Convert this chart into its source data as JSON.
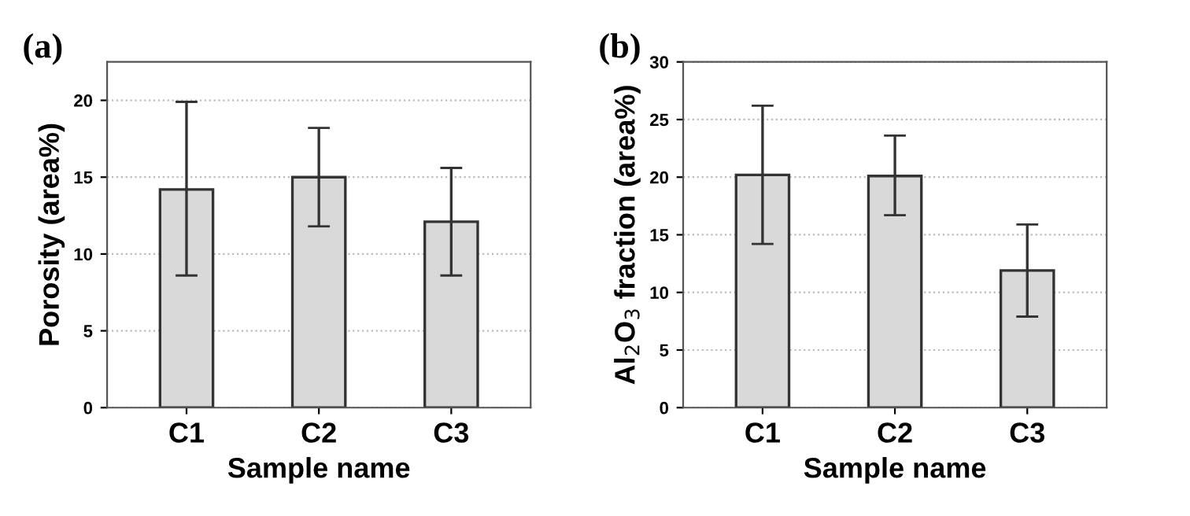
{
  "chart_data": [
    {
      "type": "bar",
      "title": "(a)",
      "xlabel": "Sample name",
      "ylabel": "Porosity (area%)",
      "categories": [
        "C1",
        "C2",
        "C3"
      ],
      "values": [
        14.2,
        15.0,
        12.1
      ],
      "errors": [
        [
          8.6,
          19.9
        ],
        [
          11.8,
          18.2
        ],
        [
          8.6,
          15.6
        ]
      ],
      "color": "#d9d9d9",
      "ylim": [
        0,
        22.5
      ],
      "yticks": [
        0,
        5,
        10,
        15,
        20
      ],
      "grid": "y"
    },
    {
      "type": "bar",
      "title": "(b)",
      "xlabel": "Sample name",
      "ylabel": "Al$_{2}$O$_{3}$ fraction (area%)",
      "categories": [
        "C1",
        "C2",
        "C3"
      ],
      "values": [
        20.2,
        20.1,
        11.9
      ],
      "errors": [
        [
          14.2,
          26.2
        ],
        [
          16.7,
          23.6
        ],
        [
          7.9,
          15.9
        ]
      ],
      "color": "#d9d9d9",
      "ylim": [
        0,
        30
      ],
      "yticks": [
        0,
        5,
        10,
        15,
        20,
        25,
        30
      ],
      "grid": "y"
    }
  ]
}
